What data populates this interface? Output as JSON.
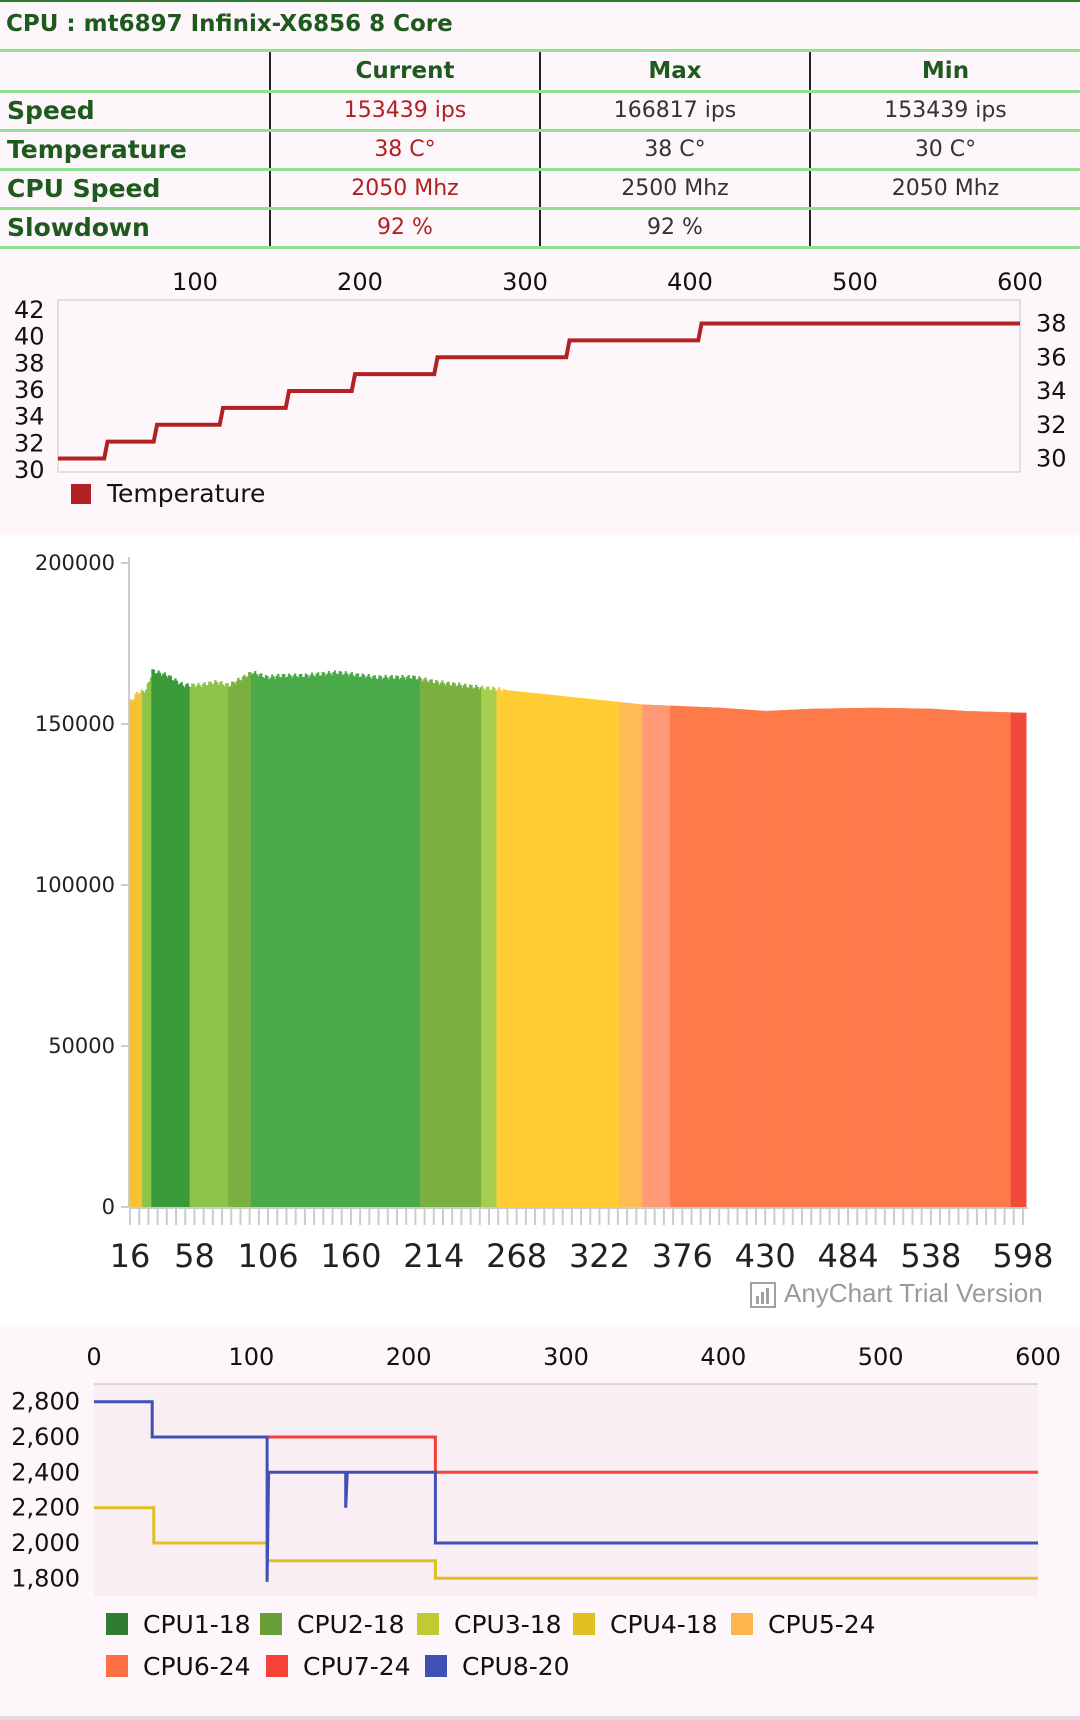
{
  "header": {
    "title": "CPU : mt6897 Infinix-X6856 8 Core"
  },
  "stats": {
    "columns": [
      "",
      "Current",
      "Max",
      "Min"
    ],
    "rows": [
      {
        "label": "Speed",
        "current": "153439 ips",
        "max": "166817 ips",
        "min": "153439 ips"
      },
      {
        "label": "Temperature",
        "current": "38 C°",
        "max": "38 C°",
        "min": "30 C°"
      },
      {
        "label": "CPU Speed",
        "current": "2050 Mhz",
        "max": "2500 Mhz",
        "min": "2050 Mhz"
      },
      {
        "label": "Slowdown",
        "current": "92 %",
        "max": "92 %",
        "min": ""
      }
    ]
  },
  "watermark": "AnyChart Trial Version",
  "chart_data": [
    {
      "type": "line",
      "name": "temperature-chart",
      "x_ticks": [
        "100",
        "200",
        "300",
        "400",
        "500",
        "600"
      ],
      "xlim": [
        17,
        600
      ],
      "y_left_ticks": [
        "30",
        "32",
        "34",
        "36",
        "38",
        "40",
        "42"
      ],
      "y_left_range": [
        30,
        42
      ],
      "y_right_ticks": [
        "30",
        "32",
        "34",
        "36",
        "38"
      ],
      "y_right_range": [
        29.2,
        38.8
      ],
      "series": [
        {
          "name": "Temperature",
          "color": "#b22222",
          "points": [
            [
              17,
              30
            ],
            [
              45,
              30
            ],
            [
              47,
              31
            ],
            [
              75,
              31
            ],
            [
              77,
              32
            ],
            [
              115,
              32
            ],
            [
              117,
              33
            ],
            [
              155,
              33
            ],
            [
              157,
              34
            ],
            [
              195,
              34
            ],
            [
              197,
              35
            ],
            [
              245,
              35
            ],
            [
              247,
              36
            ],
            [
              325,
              36
            ],
            [
              327,
              37
            ],
            [
              405,
              37
            ],
            [
              407,
              38
            ],
            [
              600,
              38
            ]
          ]
        }
      ],
      "legend_position": "bottom-left"
    },
    {
      "type": "bar",
      "name": "speed-chart",
      "y_ticks": [
        "0",
        "50000",
        "100000",
        "150000",
        "200000"
      ],
      "ylim": [
        0,
        200000
      ],
      "x_ticks": [
        "16",
        "58",
        "106",
        "160",
        "214",
        "268",
        "322",
        "376",
        "430",
        "484",
        "538",
        "598"
      ],
      "xlim": [
        16,
        600
      ],
      "profile": [
        [
          16,
          157000
        ],
        [
          20,
          159500
        ],
        [
          26,
          160500
        ],
        [
          30,
          166500
        ],
        [
          40,
          165000
        ],
        [
          50,
          162000
        ],
        [
          60,
          162000
        ],
        [
          72,
          163000
        ],
        [
          80,
          162000
        ],
        [
          95,
          166000
        ],
        [
          105,
          164500
        ],
        [
          115,
          165000
        ],
        [
          130,
          165000
        ],
        [
          150,
          166000
        ],
        [
          175,
          164500
        ],
        [
          200,
          164500
        ],
        [
          215,
          163000
        ],
        [
          240,
          161500
        ],
        [
          260,
          160500
        ],
        [
          290,
          159000
        ],
        [
          320,
          157500
        ],
        [
          350,
          156000
        ],
        [
          376,
          155500
        ],
        [
          400,
          155000
        ],
        [
          430,
          154000
        ],
        [
          460,
          154700
        ],
        [
          500,
          155000
        ],
        [
          538,
          154700
        ],
        [
          560,
          154000
        ],
        [
          598,
          153439
        ]
      ],
      "color_bands": [
        [
          16,
          24,
          "#f4c232"
        ],
        [
          24,
          30,
          "#8dc44a"
        ],
        [
          30,
          55,
          "#3a9a3a"
        ],
        [
          55,
          80,
          "#8dc44a"
        ],
        [
          80,
          95,
          "#7ab040"
        ],
        [
          95,
          205,
          "#4aaa4a"
        ],
        [
          205,
          245,
          "#7ab040"
        ],
        [
          245,
          255,
          "#a6cf50"
        ],
        [
          255,
          335,
          "#ffcc33"
        ],
        [
          335,
          350,
          "#ffbb55"
        ],
        [
          350,
          368,
          "#ff9977"
        ],
        [
          368,
          590,
          "#ff7a4a"
        ],
        [
          590,
          600,
          "#f04a3a"
        ]
      ]
    },
    {
      "type": "line",
      "name": "cpu-freq-chart",
      "x_ticks": [
        "0",
        "100",
        "200",
        "300",
        "400",
        "500",
        "600"
      ],
      "xlim": [
        0,
        600
      ],
      "y_ticks": [
        "1,800",
        "2,000",
        "2,200",
        "2,400",
        "2,600",
        "2,800"
      ],
      "ylim": [
        1700,
        2900
      ],
      "series": [
        {
          "name": "CPU1-18",
          "color": "#2e7d32",
          "points": []
        },
        {
          "name": "CPU2-18",
          "color": "#689f38",
          "points": []
        },
        {
          "name": "CPU3-18",
          "color": "#c0ca33",
          "points": []
        },
        {
          "name": "CPU4-18",
          "color": "#e0c020",
          "points": [
            [
              0,
              2200
            ],
            [
              38,
              2200
            ],
            [
              38,
              2000
            ],
            [
              110,
              2000
            ],
            [
              110,
              1900
            ],
            [
              217,
              1900
            ],
            [
              217,
              1800
            ],
            [
              600,
              1800
            ]
          ]
        },
        {
          "name": "CPU5-24",
          "color": "#ffb74d",
          "points": []
        },
        {
          "name": "CPU6-24",
          "color": "#ff7043",
          "points": []
        },
        {
          "name": "CPU7-24",
          "color": "#f44336",
          "points": [
            [
              110,
              2600
            ],
            [
              217,
              2600
            ],
            [
              217,
              2400
            ],
            [
              600,
              2400
            ]
          ]
        },
        {
          "name": "CPU8-20",
          "color": "#3f51b5",
          "points": [
            [
              0,
              2800
            ],
            [
              37,
              2800
            ],
            [
              37,
              2600
            ],
            [
              110,
              2600
            ],
            [
              110,
              1780
            ],
            [
              111,
              2400
            ],
            [
              160,
              2400
            ],
            [
              160,
              2200
            ],
            [
              161,
              2400
            ],
            [
              217,
              2400
            ],
            [
              217,
              2000
            ],
            [
              600,
              2000
            ]
          ]
        }
      ],
      "legend_position": "bottom"
    }
  ]
}
